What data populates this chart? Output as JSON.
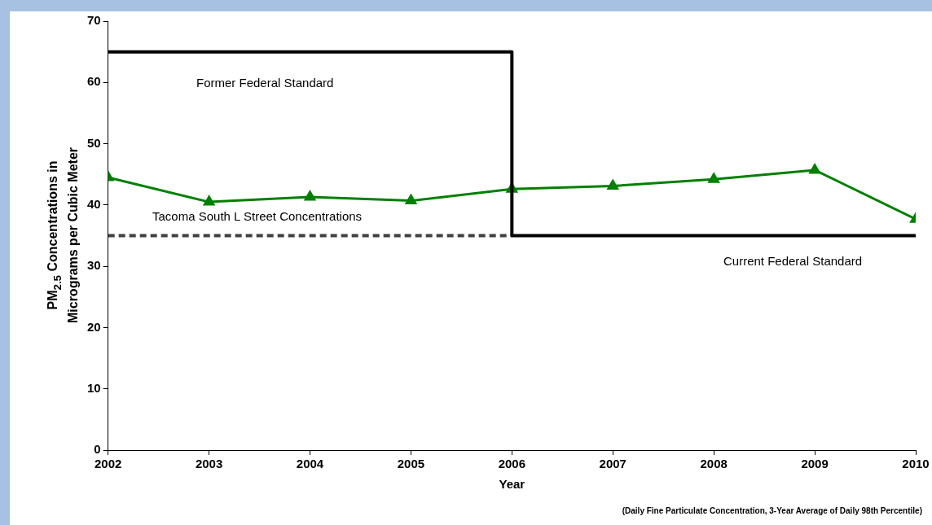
{
  "chart_data": {
    "type": "line",
    "xlabel": "Year",
    "ylabel": "PM$_{2.5}$ Concentrations in Micrograms per Cubic Meter",
    "xlim": [
      2002,
      2010
    ],
    "xticks": [
      2002,
      2003,
      2004,
      2005,
      2006,
      2007,
      2008,
      2009,
      2010
    ],
    "ylim": [
      0,
      70
    ],
    "yticks": [
      0,
      10,
      20,
      30,
      40,
      50,
      60,
      70
    ],
    "grid": false,
    "legend": false,
    "series": [
      {
        "type": "line",
        "color": "#000000",
        "x": [
          2002,
          2006,
          2006,
          2010
        ],
        "values": [
          65,
          65,
          35,
          35
        ],
        "marker": "none",
        "line_style": "solid"
      },
      {
        "type": "line",
        "color": "#404040",
        "x": [
          2002,
          2006
        ],
        "values": [
          35,
          35
        ],
        "marker": "none",
        "line_style": "dashed"
      },
      {
        "type": "line",
        "color": "#008000",
        "x": [
          2002,
          2003,
          2004,
          2005,
          2006,
          2007,
          2008,
          2009,
          2010
        ],
        "values": [
          44.5,
          40.5,
          41.3,
          40.7,
          42.6,
          43.1,
          44.2,
          45.7,
          37.7
        ],
        "marker": "triangle",
        "line_style": "solid"
      }
    ],
    "annotations": [
      "Former Federal Standard",
      "Tacoma South L Street Concentrations",
      "Current Federal Standard",
      "(Daily Fine Particulate Concentration, 3-Year Average of Daily 98th Percentile)"
    ]
  }
}
